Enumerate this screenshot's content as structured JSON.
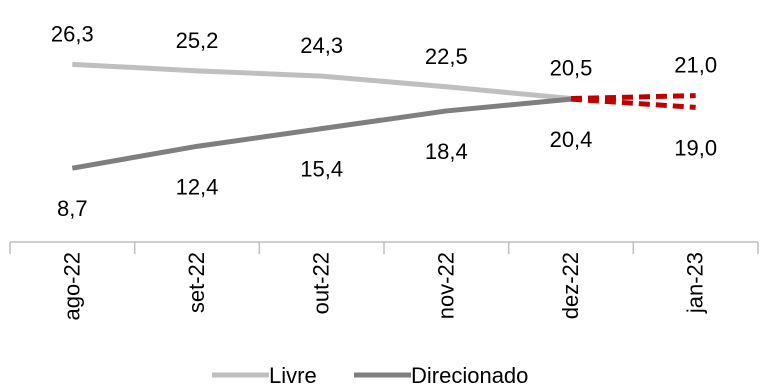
{
  "chart_data": {
    "type": "line",
    "categories": [
      "ago-22",
      "set-22",
      "out-22",
      "nov-22",
      "dez-22",
      "jan-23"
    ],
    "series": [
      {
        "name": "Livre",
        "color": "#bfbfbf",
        "values": [
          26.3,
          25.2,
          24.3,
          22.5,
          20.5,
          21.0
        ],
        "labels": [
          "26,3",
          "25,2",
          "24,3",
          "22,5",
          "20,5",
          "21,0"
        ]
      },
      {
        "name": "Direcionado",
        "color": "#7f7f7f",
        "values": [
          8.7,
          12.4,
          15.4,
          18.4,
          20.4,
          19.0
        ],
        "labels": [
          "8,7",
          "12,4",
          "15,4",
          "18,4",
          "20,4",
          "19,0"
        ]
      }
    ],
    "projection_color": "#c00000",
    "projection_from_category": "dez-22",
    "ylim": [
      0,
      30
    ],
    "grid": false,
    "legend": "bottom",
    "title": "",
    "xlabel": "",
    "ylabel": ""
  }
}
